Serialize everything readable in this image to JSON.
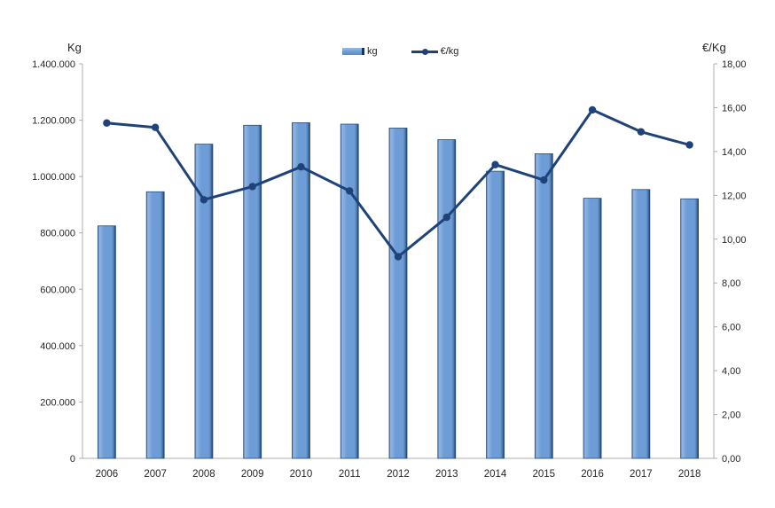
{
  "colors": {
    "background": "#FFFFFF",
    "bar_fill": "#6D9CD6",
    "bar_highlight": "#93B6E2",
    "bar_edge": "#4C7AB0",
    "bar_shadow": "#16365C",
    "bar_border": "#2C4D77",
    "line": "#1F4379",
    "axis_line": "#ACACAC",
    "tick_text": "#262626"
  },
  "chart_data": {
    "type": "combo-bar-line",
    "title": "",
    "grid": false,
    "categories": [
      "2006",
      "2007",
      "2008",
      "2009",
      "2010",
      "2011",
      "2012",
      "2013",
      "2014",
      "2015",
      "2016",
      "2017",
      "2018"
    ],
    "series": [
      {
        "name": "kg",
        "type": "bar",
        "axis": "left",
        "color": "#6D9CD6",
        "values": [
          825000,
          946000,
          1115000,
          1182000,
          1191000,
          1186000,
          1172000,
          1131000,
          1019000,
          1081000,
          923000,
          954000,
          921000
        ]
      },
      {
        "name": "€/kg",
        "type": "line",
        "axis": "right",
        "color": "#1F4379",
        "values": [
          15.3,
          15.1,
          11.8,
          12.4,
          13.3,
          12.2,
          9.2,
          11.0,
          13.4,
          12.7,
          15.9,
          14.9,
          14.3
        ]
      }
    ],
    "left_axis": {
      "title": "Kg",
      "min": 0,
      "max": 1400000,
      "tick_values": [
        0,
        200000,
        400000,
        600000,
        800000,
        1000000,
        1200000,
        1400000
      ],
      "tick_labels": [
        "0",
        "200.000",
        "400.000",
        "600.000",
        "800.000",
        "1.000.000",
        "1.200.000",
        "1.400.000"
      ]
    },
    "right_axis": {
      "title": "€/Kg",
      "min": 0,
      "max": 18,
      "tick_values": [
        0,
        2,
        4,
        6,
        8,
        10,
        12,
        14,
        16,
        18
      ],
      "tick_labels": [
        "0,00",
        "2,00",
        "4,00",
        "6,00",
        "8,00",
        "10,00",
        "12,00",
        "14,00",
        "16,00",
        "18,00"
      ]
    },
    "legend": {
      "position": "top",
      "items": [
        "kg",
        "€/kg"
      ]
    }
  }
}
